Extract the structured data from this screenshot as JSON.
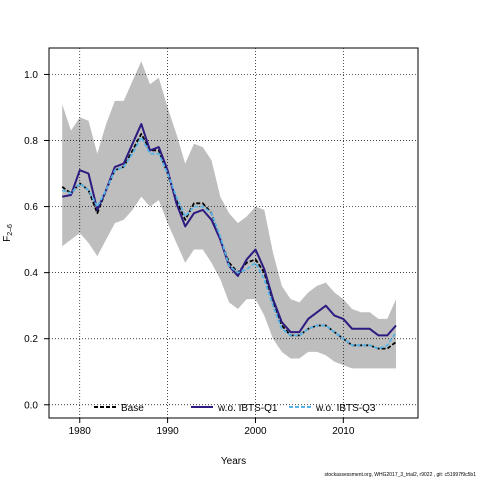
{
  "chart_data": {
    "type": "line",
    "xlabel": "Years",
    "ylabel": "F",
    "ylabel_sub": "2–6",
    "xlim": [
      1976.5,
      2018.5
    ],
    "ylim": [
      -0.04,
      1.08
    ],
    "x_ticks": [
      1980,
      1990,
      2000,
      2010
    ],
    "y_ticks": [
      0.0,
      0.2,
      0.4,
      0.6,
      0.8,
      1.0
    ],
    "x_tick_labels": [
      "1980",
      "1990",
      "2000",
      "2010"
    ],
    "y_tick_labels": [
      "0.0",
      "0.2",
      "0.4",
      "0.6",
      "0.8",
      "1.0"
    ],
    "grid": true,
    "legend_position": "bottom",
    "x": [
      1978,
      1979,
      1980,
      1981,
      1982,
      1983,
      1984,
      1985,
      1986,
      1987,
      1988,
      1989,
      1990,
      1991,
      1992,
      1993,
      1994,
      1995,
      1996,
      1997,
      1998,
      1999,
      2000,
      2001,
      2002,
      2003,
      2004,
      2005,
      2006,
      2007,
      2008,
      2009,
      2010,
      2011,
      2012,
      2013,
      2014,
      2015,
      2016
    ],
    "band": {
      "color": "#bebebe",
      "upper": [
        0.91,
        0.83,
        0.87,
        0.86,
        0.76,
        0.85,
        0.92,
        0.92,
        0.98,
        1.04,
        0.97,
        0.99,
        0.9,
        0.82,
        0.73,
        0.79,
        0.78,
        0.74,
        0.63,
        0.58,
        0.55,
        0.57,
        0.6,
        0.59,
        0.46,
        0.36,
        0.32,
        0.31,
        0.34,
        0.36,
        0.37,
        0.34,
        0.32,
        0.29,
        0.28,
        0.28,
        0.26,
        0.26,
        0.32
      ],
      "lower": [
        0.48,
        0.5,
        0.52,
        0.49,
        0.45,
        0.5,
        0.55,
        0.56,
        0.59,
        0.63,
        0.6,
        0.62,
        0.55,
        0.49,
        0.43,
        0.47,
        0.47,
        0.43,
        0.38,
        0.31,
        0.29,
        0.32,
        0.32,
        0.27,
        0.2,
        0.16,
        0.14,
        0.14,
        0.16,
        0.16,
        0.15,
        0.13,
        0.12,
        0.11,
        0.11,
        0.11,
        0.11,
        0.11,
        0.11
      ]
    },
    "series": [
      {
        "name": "Base",
        "color": "#000000",
        "dash": "dashed",
        "values": [
          0.66,
          0.64,
          0.67,
          0.65,
          0.58,
          0.65,
          0.71,
          0.72,
          0.77,
          0.82,
          0.77,
          0.77,
          0.7,
          0.62,
          0.56,
          0.61,
          0.61,
          0.58,
          0.5,
          0.43,
          0.4,
          0.43,
          0.44,
          0.4,
          0.31,
          0.24,
          0.21,
          0.21,
          0.23,
          0.24,
          0.24,
          0.22,
          0.2,
          0.18,
          0.18,
          0.18,
          0.17,
          0.17,
          0.19
        ]
      },
      {
        "name": "w.o. IBTS-Q1",
        "color": "#2e1a80",
        "dash": "solid",
        "values": [
          0.63,
          0.635,
          0.71,
          0.7,
          0.59,
          0.65,
          0.72,
          0.73,
          0.79,
          0.85,
          0.77,
          0.78,
          0.71,
          0.61,
          0.54,
          0.58,
          0.59,
          0.56,
          0.5,
          0.42,
          0.39,
          0.44,
          0.47,
          0.41,
          0.32,
          0.25,
          0.22,
          0.22,
          0.26,
          0.28,
          0.3,
          0.27,
          0.26,
          0.23,
          0.23,
          0.23,
          0.21,
          0.21,
          0.24
        ]
      },
      {
        "name": "w.o. IBTS-Q3",
        "color": "#56b4e9",
        "dash": "dashed",
        "values": [
          0.65,
          0.64,
          0.67,
          0.65,
          0.6,
          0.65,
          0.71,
          0.72,
          0.76,
          0.81,
          0.76,
          0.76,
          0.7,
          0.63,
          0.57,
          0.6,
          0.6,
          0.58,
          0.51,
          0.42,
          0.4,
          0.41,
          0.43,
          0.38,
          0.3,
          0.23,
          0.21,
          0.21,
          0.23,
          0.24,
          0.24,
          0.22,
          0.2,
          0.18,
          0.18,
          0.18,
          0.17,
          0.18,
          0.22
        ]
      }
    ]
  },
  "footer": "stockassessment.org, WHG2017_3_trial2, r9022 , git: c51997f9c5b1"
}
